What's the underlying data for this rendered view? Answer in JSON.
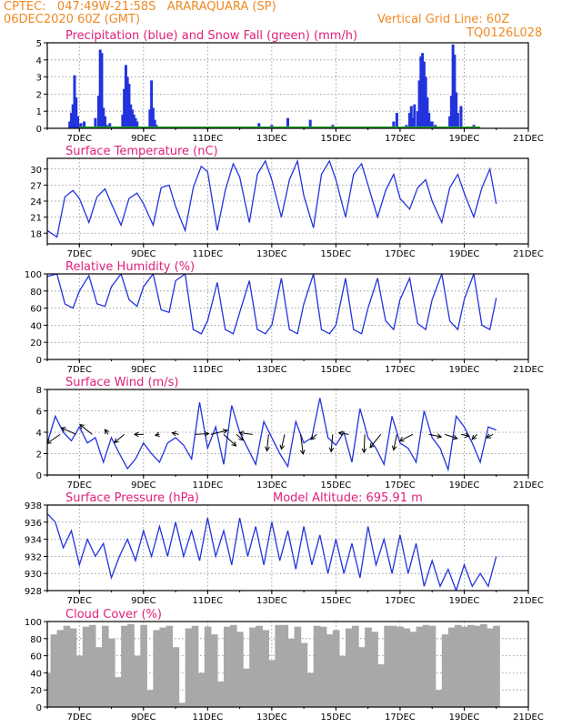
{
  "header": {
    "line1": "CPTEC:   047:49W-21:58S   ARARAQUARA (SP)",
    "line2": "06DEC2020 60Z (GMT)",
    "grid_note": "Vertical Grid Line: 60Z",
    "code": "TQ0126L028",
    "title_color": "#f08a24"
  },
  "model_altitude_label": "Model Altitude: 695.91 m",
  "colors": {
    "panel_title": "#e0207a",
    "line": "#2233dd",
    "precip": "#2233dd",
    "snow": "#22aa22",
    "cloud": "#a8a8a8",
    "wind_arrow": "#000000"
  },
  "date_ticks": [
    "7DEC",
    "9DEC",
    "11DEC",
    "13DEC",
    "15DEC",
    "17DEC",
    "19DEC",
    "21DEC"
  ],
  "chart_data": [
    {
      "type": "bar",
      "title": "Precipitation (blue) and Snow Fall (green) (mm/h)",
      "x_unit": "days from 06DEC2020",
      "ylim": [
        0,
        5
      ],
      "yticks": [
        0,
        1,
        2,
        3,
        4,
        5
      ],
      "grid": true,
      "series": [
        {
          "name": "Precipitation",
          "color": "#2233dd",
          "x": [
            0.7,
            0.75,
            0.8,
            0.85,
            0.9,
            0.95,
            1.0,
            1.05,
            1.15,
            1.25,
            1.5,
            1.6,
            1.65,
            1.7,
            1.75,
            1.8,
            1.85,
            1.95,
            2.35,
            2.4,
            2.45,
            2.5,
            2.55,
            2.6,
            2.65,
            2.7,
            2.75,
            2.8,
            3.2,
            3.25,
            3.3,
            3.35,
            3.4,
            6.6,
            7.0,
            7.5,
            8.2,
            8.9,
            10.8,
            10.9,
            11.2,
            11.3,
            11.35,
            11.4,
            11.45,
            11.55,
            11.6,
            11.65,
            11.7,
            11.75,
            11.8,
            11.85,
            11.9,
            11.95,
            12.0,
            12.1,
            12.55,
            12.6,
            12.65,
            12.7,
            12.75,
            12.8,
            12.9,
            13.3
          ],
          "values": [
            0.4,
            0.9,
            1.4,
            3.1,
            1.8,
            0.7,
            0.2,
            0.3,
            0.4,
            0.1,
            0.6,
            1.9,
            4.6,
            4.4,
            1.2,
            0.7,
            0.2,
            0.3,
            0.8,
            2.3,
            3.7,
            3.0,
            2.6,
            1.4,
            1.1,
            0.8,
            0.6,
            0.4,
            1.1,
            2.8,
            1.2,
            0.5,
            0.2,
            0.3,
            0.2,
            0.6,
            0.5,
            0.2,
            0.4,
            0.9,
            0.2,
            0.9,
            1.3,
            0.6,
            1.4,
            1.0,
            2.8,
            4.2,
            4.4,
            3.9,
            3.0,
            1.8,
            0.9,
            0.4,
            0.4,
            0.2,
            0.7,
            1.9,
            4.9,
            4.3,
            2.1,
            0.9,
            1.3,
            0.2
          ]
        },
        {
          "name": "Snow Fall",
          "color": "#22aa22",
          "x": [
            1.0,
            13.5
          ],
          "values": [
            0.08,
            0.08
          ]
        }
      ]
    },
    {
      "type": "line",
      "title": "Surface Temperature (nC)",
      "x_unit": "days from 06DEC2020",
      "ylim": [
        16,
        32
      ],
      "yticks": [
        18,
        21,
        24,
        27,
        30
      ],
      "grid": true,
      "series": [
        {
          "name": "Temperature",
          "color": "#2233dd",
          "x": [
            0,
            0.3,
            0.55,
            0.8,
            1.0,
            1.3,
            1.55,
            1.8,
            2.0,
            2.3,
            2.55,
            2.8,
            3.0,
            3.3,
            3.55,
            3.8,
            4.0,
            4.3,
            4.55,
            4.8,
            5.0,
            5.3,
            5.55,
            5.8,
            6.0,
            6.3,
            6.55,
            6.8,
            7.0,
            7.3,
            7.55,
            7.8,
            8.0,
            8.3,
            8.55,
            8.8,
            9.0,
            9.3,
            9.55,
            9.8,
            10.0,
            10.3,
            10.55,
            10.8,
            11.0,
            11.3,
            11.55,
            11.8,
            12.0,
            12.3,
            12.55,
            12.8,
            13.0,
            13.3,
            13.55,
            13.8,
            14.0
          ],
          "values": [
            18.5,
            17.3,
            24.8,
            26.0,
            24.5,
            20.0,
            24.8,
            26.3,
            23.5,
            19.5,
            24.5,
            25.5,
            23.5,
            19.5,
            26.5,
            27.0,
            23.0,
            18.5,
            26.5,
            30.5,
            29.5,
            18.5,
            26.0,
            31.0,
            28.5,
            20.0,
            29.0,
            31.5,
            28.0,
            21.0,
            28.0,
            31.5,
            25.0,
            19.0,
            29.0,
            31.5,
            28.0,
            21.0,
            29.0,
            31.0,
            27.0,
            21.0,
            26.0,
            29.0,
            24.5,
            22.5,
            26.5,
            28.0,
            24.0,
            20.0,
            26.5,
            29.0,
            25.5,
            21.0,
            26.5,
            30.0,
            23.5
          ]
        }
      ]
    },
    {
      "type": "line",
      "title": "Relative Humidity (%)",
      "x_unit": "days from 06DEC2020",
      "ylim": [
        0,
        100
      ],
      "yticks": [
        0,
        20,
        40,
        60,
        80,
        100
      ],
      "grid": true,
      "series": [
        {
          "name": "Relative Humidity",
          "color": "#2233dd",
          "x": [
            0,
            0.3,
            0.55,
            0.8,
            1.0,
            1.3,
            1.55,
            1.8,
            2.0,
            2.3,
            2.55,
            2.8,
            3.0,
            3.3,
            3.55,
            3.8,
            4.0,
            4.3,
            4.55,
            4.8,
            5.0,
            5.3,
            5.55,
            5.8,
            6.0,
            6.3,
            6.55,
            6.8,
            7.0,
            7.3,
            7.55,
            7.8,
            8.0,
            8.3,
            8.55,
            8.8,
            9.0,
            9.3,
            9.55,
            9.8,
            10.0,
            10.3,
            10.55,
            10.8,
            11.0,
            11.3,
            11.55,
            11.8,
            12.0,
            12.3,
            12.55,
            12.8,
            13.0,
            13.3,
            13.55,
            13.8,
            14.0
          ],
          "values": [
            97,
            100,
            65,
            60,
            80,
            98,
            65,
            62,
            85,
            100,
            70,
            62,
            85,
            100,
            58,
            55,
            92,
            100,
            35,
            30,
            45,
            90,
            35,
            30,
            55,
            92,
            35,
            30,
            40,
            95,
            35,
            30,
            65,
            100,
            35,
            30,
            40,
            95,
            35,
            30,
            60,
            95,
            45,
            35,
            70,
            95,
            42,
            35,
            70,
            100,
            45,
            35,
            70,
            100,
            40,
            35,
            72
          ]
        }
      ]
    },
    {
      "type": "line",
      "title": "Surface Wind (m/s)",
      "x_unit": "days from 06DEC2020",
      "ylim": [
        0,
        8
      ],
      "yticks": [
        0,
        2,
        4,
        6,
        8
      ],
      "grid": true,
      "series": [
        {
          "name": "Wind speed",
          "color": "#2233dd",
          "x": [
            0,
            0.25,
            0.5,
            0.75,
            1.0,
            1.25,
            1.5,
            1.75,
            2.0,
            2.25,
            2.5,
            2.75,
            3.0,
            3.25,
            3.5,
            3.75,
            4.0,
            4.25,
            4.5,
            4.75,
            5.0,
            5.25,
            5.5,
            5.75,
            6.0,
            6.25,
            6.5,
            6.75,
            7.0,
            7.25,
            7.5,
            7.75,
            8.0,
            8.25,
            8.5,
            8.75,
            9.0,
            9.25,
            9.5,
            9.75,
            10.0,
            10.25,
            10.5,
            10.75,
            11.0,
            11.25,
            11.5,
            11.75,
            12.0,
            12.25,
            12.5,
            12.75,
            13.0,
            13.25,
            13.5,
            13.75,
            14.0
          ],
          "values": [
            3.0,
            5.5,
            4.0,
            3.2,
            4.5,
            3.0,
            3.5,
            1.2,
            3.5,
            2.0,
            0.6,
            1.5,
            3.0,
            2.0,
            1.2,
            3.0,
            3.5,
            2.8,
            1.5,
            6.8,
            2.5,
            4.5,
            1.0,
            6.5,
            4.0,
            2.5,
            1.0,
            5.0,
            3.5,
            2.0,
            0.8,
            5.0,
            3.0,
            3.5,
            7.2,
            3.5,
            2.8,
            4.0,
            1.2,
            6.2,
            3.5,
            2.5,
            1.0,
            5.5,
            3.0,
            2.5,
            1.2,
            6.0,
            3.5,
            2.5,
            0.5,
            5.5,
            4.5,
            3.0,
            1.2,
            4.5,
            4.2
          ]
        },
        {
          "name": "Wind arrows",
          "color": "#000000",
          "x": [
            0.4,
            0.9,
            1.4,
            1.9,
            2.4,
            3.0,
            3.5,
            4.1,
            4.6,
            5.1,
            5.5,
            5.9,
            6.4,
            6.9,
            7.4,
            7.9,
            8.4,
            8.9,
            9.4,
            9.9,
            10.4,
            10.9,
            11.4,
            11.9,
            12.4,
            12.9,
            13.4,
            13.9
          ],
          "u": [
            -1.6,
            -1.8,
            -1.5,
            -0.4,
            -1.2,
            -1.1,
            -0.5,
            -0.8,
            1.7,
            2.0,
            1.5,
            0.8,
            -1.6,
            -0.2,
            -0.4,
            0.3,
            -0.7,
            -0.2,
            -1.2,
            -0.1,
            -1.3,
            -0.4,
            -1.6,
            1.5,
            1.5,
            1.0,
            -0.6,
            -0.8
          ],
          "v": [
            -1.1,
            0.8,
            1.2,
            0.6,
            -1.0,
            0.0,
            -0.1,
            0.2,
            0.1,
            0.5,
            -1.4,
            -0.7,
            0.2,
            -2.0,
            -1.8,
            -2.4,
            -0.6,
            -2.1,
            0.2,
            -2.2,
            -1.6,
            -1.9,
            -0.8,
            -0.3,
            -0.5,
            -0.2,
            -0.6,
            -0.4
          ]
        }
      ]
    },
    {
      "type": "line",
      "title": "Surface Pressure (hPa)",
      "x_unit": "days from 06DEC2020",
      "ylim": [
        928,
        938
      ],
      "yticks": [
        928,
        930,
        932,
        934,
        936,
        938
      ],
      "grid": true,
      "series": [
        {
          "name": "Pressure",
          "color": "#2233dd",
          "x": [
            0,
            0.25,
            0.5,
            0.75,
            1.0,
            1.25,
            1.5,
            1.75,
            2.0,
            2.25,
            2.5,
            2.75,
            3.0,
            3.25,
            3.5,
            3.75,
            4.0,
            4.25,
            4.5,
            4.75,
            5.0,
            5.25,
            5.5,
            5.75,
            6.0,
            6.25,
            6.5,
            6.75,
            7.0,
            7.25,
            7.5,
            7.75,
            8.0,
            8.25,
            8.5,
            8.75,
            9.0,
            9.25,
            9.5,
            9.75,
            10.0,
            10.25,
            10.5,
            10.75,
            11.0,
            11.25,
            11.5,
            11.75,
            12.0,
            12.25,
            12.5,
            12.75,
            13.0,
            13.25,
            13.5,
            13.75,
            14.0
          ],
          "values": [
            937,
            936,
            933,
            935,
            931,
            934,
            932,
            933.5,
            929.5,
            932,
            934,
            931.5,
            935,
            932,
            935.5,
            932,
            936,
            932,
            935,
            931.5,
            936.5,
            932,
            935,
            931,
            936.5,
            932,
            935.5,
            931,
            936,
            931.5,
            935,
            930.5,
            935.5,
            931,
            934.5,
            930,
            934,
            930,
            933.5,
            929.5,
            935.5,
            931,
            934,
            930,
            934.5,
            930,
            933.5,
            928.5,
            931.5,
            928.5,
            930.5,
            928,
            931,
            928.5,
            930,
            928.5,
            932
          ]
        }
      ]
    },
    {
      "type": "area",
      "title": "Cloud Cover (%)",
      "x_unit": "days from 06DEC2020",
      "ylim": [
        0,
        100
      ],
      "yticks": [
        0,
        20,
        40,
        60,
        80,
        100
      ],
      "grid": true,
      "series": [
        {
          "name": "Cloud Cover",
          "color": "#a8a8a8",
          "x": [
            0,
            0.2,
            0.4,
            0.6,
            0.8,
            1.0,
            1.2,
            1.4,
            1.6,
            1.8,
            2.0,
            2.2,
            2.4,
            2.6,
            2.8,
            3.0,
            3.2,
            3.4,
            3.6,
            3.8,
            4.0,
            4.2,
            4.4,
            4.6,
            4.8,
            5.0,
            5.2,
            5.4,
            5.6,
            5.8,
            6.0,
            6.2,
            6.4,
            6.6,
            6.8,
            7.0,
            7.2,
            7.4,
            7.6,
            7.8,
            8.0,
            8.2,
            8.4,
            8.6,
            8.8,
            9.0,
            9.2,
            9.4,
            9.6,
            9.8,
            10.0,
            10.2,
            10.4,
            10.6,
            10.8,
            11.0,
            11.2,
            11.4,
            11.6,
            11.8,
            12.0,
            12.2,
            12.4,
            12.6,
            12.8,
            13.0,
            13.2,
            13.4,
            13.6,
            13.8,
            14.0
          ],
          "values": [
            40,
            85,
            90,
            95,
            92,
            60,
            94,
            96,
            70,
            95,
            80,
            35,
            95,
            97,
            60,
            96,
            20,
            90,
            93,
            95,
            70,
            5,
            92,
            95,
            40,
            94,
            85,
            30,
            94,
            96,
            88,
            45,
            93,
            95,
            90,
            55,
            96,
            96,
            80,
            94,
            75,
            40,
            95,
            94,
            85,
            90,
            60,
            92,
            95,
            70,
            93,
            88,
            50,
            95,
            95,
            94,
            92,
            88,
            94,
            96,
            95,
            20,
            85,
            93,
            96,
            94,
            96,
            95,
            97,
            92,
            95
          ]
        }
      ]
    }
  ],
  "panels": [
    {
      "title": "Precipitation (blue) and Snow Fall (green) (mm/h)"
    },
    {
      "title": "Surface Temperature (nC)"
    },
    {
      "title": "Relative Humidity (%)"
    },
    {
      "title": "Surface Wind (m/s)"
    },
    {
      "title": "Surface Pressure (hPa)"
    },
    {
      "title": "Cloud Cover (%)"
    }
  ]
}
